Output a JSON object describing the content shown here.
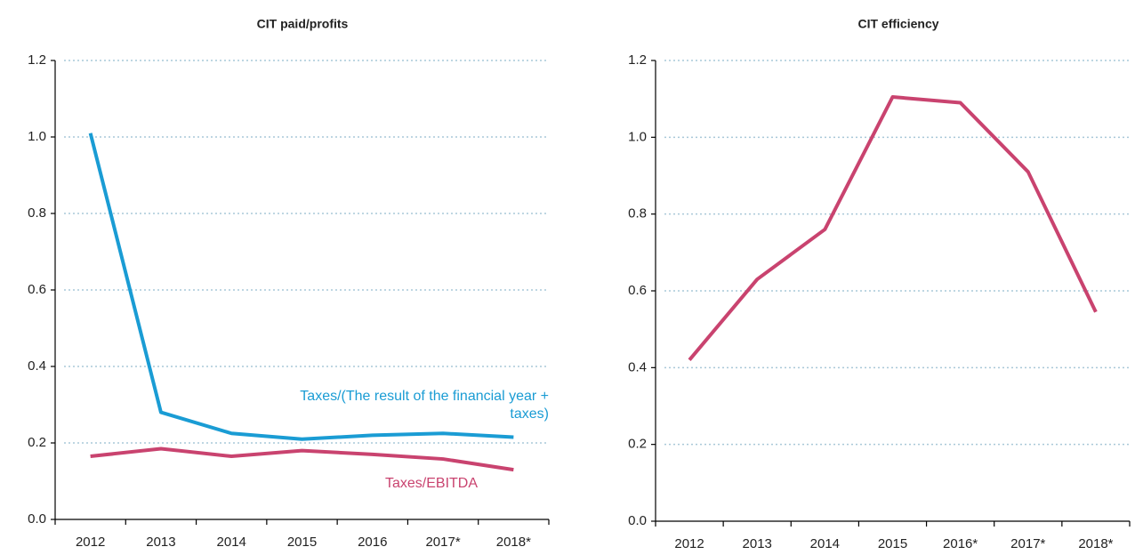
{
  "chart_data": [
    {
      "type": "line",
      "title": "CIT paid/profits",
      "categories": [
        "2012",
        "2013",
        "2014",
        "2015",
        "2016",
        "2017*",
        "2018*"
      ],
      "series": [
        {
          "name": "Taxes/(The result of the financial year + taxes)",
          "color": "#1a9cd4",
          "values": [
            1.01,
            0.28,
            0.225,
            0.21,
            0.22,
            0.225,
            0.215
          ]
        },
        {
          "name": "Taxes/EBITDA",
          "color": "#c9436f",
          "values": [
            0.165,
            0.185,
            0.165,
            0.18,
            0.17,
            0.158,
            0.13
          ]
        }
      ],
      "ylim": [
        0,
        1.2
      ],
      "yticks": [
        {
          "value": 0,
          "label": "0.0"
        },
        0.2,
        0.4,
        0.6,
        0.8,
        {
          "value": 1,
          "label": "1.0"
        },
        1.2
      ],
      "grid": true
    },
    {
      "type": "line",
      "title": "CIT efficiency",
      "categories": [
        "2012",
        "2013",
        "2014",
        "2015",
        "2016*",
        "2017*",
        "2018*"
      ],
      "series": [
        {
          "name": "CIT efficiency",
          "color": "#c9436f",
          "values": [
            0.42,
            0.63,
            0.76,
            1.105,
            1.09,
            0.91,
            0.545
          ]
        }
      ],
      "ylim": [
        0,
        1.2
      ],
      "yticks": [
        {
          "value": 0,
          "label": "0.0"
        },
        0.2,
        0.4,
        0.6,
        0.8,
        {
          "value": 1,
          "label": "1.0"
        },
        1.2
      ],
      "grid": true
    }
  ]
}
